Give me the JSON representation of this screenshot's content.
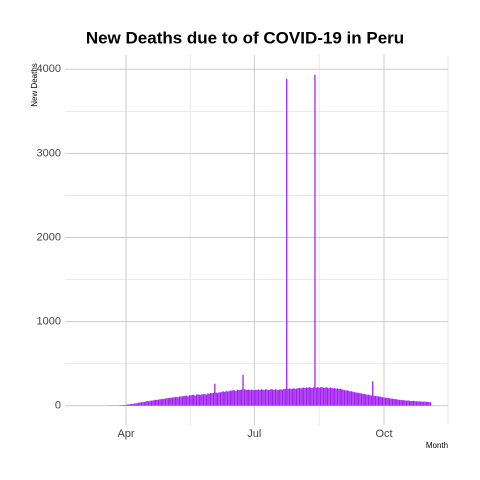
{
  "chart_data": {
    "type": "bar",
    "title": "New Deaths due to of COVID-19 in Peru",
    "x_label": "Month",
    "y_label": "New  Deaths",
    "color": "#a020f0",
    "grid": true,
    "categories": [
      null,
      null,
      null,
      null,
      null,
      null,
      null,
      null,
      null,
      null,
      null,
      null,
      null,
      null,
      null,
      null,
      null,
      null,
      null,
      null,
      null,
      null,
      null,
      null,
      null,
      null,
      null,
      null,
      null,
      null,
      null,
      null,
      null,
      null,
      null,
      null,
      null,
      null,
      null,
      null,
      null,
      null,
      null,
      null,
      null,
      null,
      null,
      null,
      null,
      null,
      null,
      null,
      null,
      null,
      null,
      null,
      null,
      null,
      null,
      null,
      null,
      null,
      null,
      null,
      null,
      null,
      null,
      null,
      null,
      null,
      null,
      null,
      null,
      null,
      null,
      null,
      null,
      null,
      null,
      null,
      null,
      null,
      null,
      null,
      null,
      null,
      null,
      null,
      null,
      null,
      null,
      null,
      null,
      null,
      null,
      null,
      null,
      null,
      null,
      null,
      null,
      null,
      null,
      null,
      null,
      null,
      null,
      null,
      null,
      null,
      null,
      null,
      null,
      null,
      null,
      null,
      null,
      null,
      null,
      null,
      null,
      null,
      null,
      null,
      null,
      null,
      null,
      null,
      null,
      null,
      null,
      null,
      null,
      null,
      null,
      null,
      null,
      null,
      null,
      null,
      null,
      null,
      null,
      null,
      null,
      null,
      null,
      null,
      null,
      null,
      null,
      null,
      null,
      null,
      null,
      null,
      null,
      null,
      null,
      null,
      null,
      null,
      null,
      null,
      null,
      null,
      null,
      null,
      null,
      null,
      null,
      null,
      null,
      null,
      null,
      null,
      null,
      null,
      null,
      null,
      null,
      null,
      null,
      null,
      null,
      null,
      null,
      null,
      null,
      null,
      null,
      null,
      null,
      null,
      null,
      null,
      null,
      null,
      null,
      null,
      null,
      null,
      null,
      null,
      null,
      null,
      null,
      null,
      null,
      null,
      null,
      null,
      null,
      null,
      null,
      null,
      null,
      null,
      null,
      null,
      null,
      null,
      null,
      null,
      null,
      null,
      null,
      null,
      null
    ],
    "values": [
      2,
      1,
      2,
      2,
      1,
      2,
      2,
      3,
      5,
      6,
      6,
      8,
      10,
      12,
      15,
      18,
      20,
      22,
      25,
      28,
      30,
      35,
      38,
      40,
      45,
      42,
      50,
      55,
      52,
      58,
      60,
      62,
      65,
      70,
      68,
      72,
      75,
      78,
      80,
      82,
      85,
      88,
      90,
      92,
      95,
      98,
      100,
      102,
      105,
      100,
      110,
      108,
      112,
      115,
      118,
      120,
      110,
      125,
      122,
      128,
      130,
      118,
      132,
      135,
      130,
      128,
      138,
      135,
      140,
      132,
      145,
      142,
      150,
      148,
      152,
      260,
      155,
      150,
      160,
      158,
      165,
      170,
      162,
      175,
      168,
      172,
      180,
      178,
      185,
      182,
      175,
      190,
      185,
      188,
      192,
      367,
      195,
      190,
      188,
      192,
      185,
      190,
      188,
      185,
      190,
      188,
      192,
      186,
      195,
      190,
      188,
      194,
      192,
      185,
      190,
      196,
      192,
      188,
      194,
      190,
      186,
      192,
      195,
      190,
      198,
      200,
      3887,
      200,
      205,
      198,
      202,
      206,
      200,
      204,
      208,
      210,
      205,
      212,
      215,
      210,
      218,
      212,
      220,
      215,
      210,
      218,
      3935,
      215,
      220,
      212,
      218,
      222,
      215,
      210,
      220,
      214,
      208,
      216,
      212,
      205,
      210,
      200,
      206,
      198,
      202,
      195,
      190,
      185,
      180,
      182,
      175,
      170,
      172,
      165,
      160,
      158,
      155,
      150,
      148,
      145,
      140,
      142,
      135,
      130,
      132,
      125,
      120,
      290,
      118,
      115,
      112,
      110,
      108,
      105,
      100,
      98,
      95,
      92,
      90,
      88,
      85,
      82,
      80,
      78,
      75,
      72,
      70,
      68,
      66,
      65,
      62,
      60,
      62,
      58,
      56,
      55,
      58,
      54,
      52,
      50,
      52,
      48,
      50,
      46,
      48,
      45,
      44,
      42,
      40
    ],
    "xlim": [
      -31.3,
      240.4
    ],
    "xticks": [
      {
        "value": 12,
        "label": "Apr"
      },
      {
        "value": 103,
        "label": "Jul"
      },
      {
        "value": 195,
        "label": "Oct"
      }
    ],
    "xminorticks": [
      57.5,
      149,
      240.4
    ],
    "ylim": [
      -230,
      4170
    ],
    "yticks": [
      0,
      1000,
      2000,
      3000,
      4000
    ],
    "yminorticks": [
      500,
      1500,
      2500,
      3500
    ]
  }
}
